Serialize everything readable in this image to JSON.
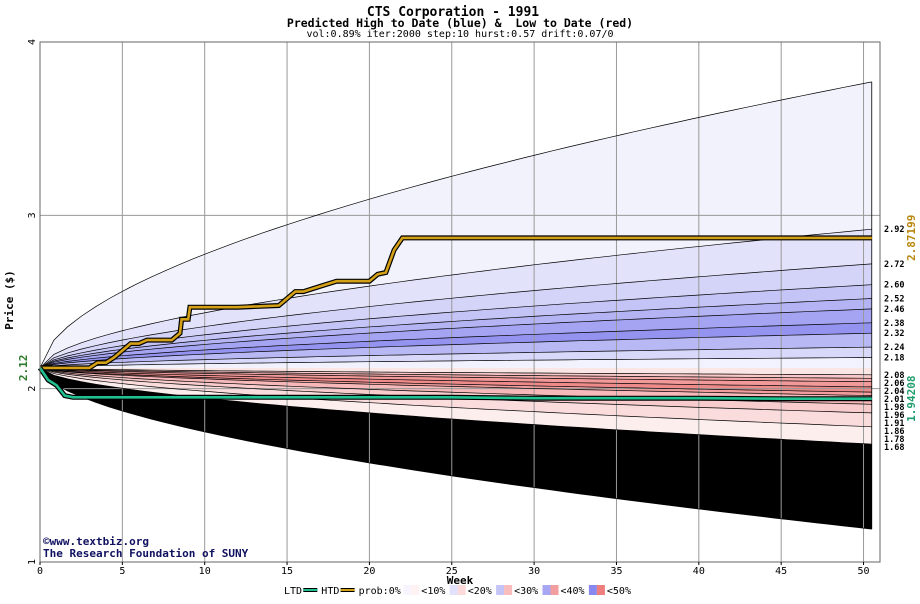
{
  "chart_data": {
    "type": "area",
    "title": "CTS Corporation - 1991",
    "subtitle": "Predicted High to Date (blue) &  Low to Date (red)",
    "params": "vol:0.89% iter:2000 step:10 hurst:0.57 drift:0.07/0",
    "xlabel": "Week",
    "ylabel": "Price ($)",
    "xlim": [
      0,
      51
    ],
    "ylim": [
      1,
      4
    ],
    "x_ticks": [
      0,
      5,
      10,
      15,
      20,
      25,
      30,
      35,
      40,
      45,
      50
    ],
    "y_ticks": [
      1,
      2,
      3,
      4
    ],
    "grid": true,
    "start_price": 2.12,
    "start_price_label": "2.12",
    "htd_value_label": "2.87199",
    "ltd_value_label": "1.94208",
    "high_quantile_end_values": [
      2.92,
      2.72,
      2.6,
      2.52,
      2.46,
      2.38,
      2.32,
      2.24,
      2.18
    ],
    "high_quantile_end_labels": [
      "2.92",
      "2.72",
      "2.60",
      "2.52",
      "2.46",
      "2.38",
      "2.32",
      "2.24",
      "2.18"
    ],
    "low_quantile_end_values": [
      2.08,
      2.06,
      2.04,
      2.01,
      1.98,
      1.96,
      1.91,
      1.86,
      1.78,
      1.68
    ],
    "low_quantile_end_labels": [
      "2.08",
      "2.06",
      "2.04",
      "2.01",
      "1.98",
      "1.96",
      "1.91",
      "1.86",
      "1.78",
      "1.68"
    ],
    "high_max_end": 3.77,
    "low_min_end": 1.19,
    "series": [
      {
        "name": "HTD",
        "color": "#d4a017",
        "x": [
          0,
          1,
          2,
          3,
          3.5,
          4,
          4.5,
          5,
          5.5,
          6,
          6.5,
          7,
          8,
          8.5,
          8.6,
          9,
          9.1,
          10,
          12,
          14.5,
          15,
          15.5,
          16,
          17,
          18,
          20,
          20.5,
          21,
          21.5,
          22,
          25,
          30,
          35,
          40,
          45,
          50.5
        ],
        "y": [
          2.12,
          2.12,
          2.12,
          2.12,
          2.15,
          2.15,
          2.18,
          2.22,
          2.26,
          2.26,
          2.28,
          2.28,
          2.28,
          2.32,
          2.4,
          2.4,
          2.47,
          2.47,
          2.47,
          2.48,
          2.52,
          2.56,
          2.56,
          2.59,
          2.62,
          2.62,
          2.66,
          2.67,
          2.8,
          2.87,
          2.87,
          2.87,
          2.87,
          2.87,
          2.87,
          2.87
        ]
      },
      {
        "name": "LTD",
        "color": "#20c090",
        "x": [
          0,
          0.5,
          1,
          1.5,
          2,
          2.5,
          3,
          5,
          10,
          15,
          20,
          25,
          30,
          35,
          40,
          45,
          50.5
        ],
        "y": [
          2.12,
          2.05,
          2.02,
          1.96,
          1.95,
          1.95,
          1.95,
          1.95,
          1.95,
          1.95,
          1.95,
          1.95,
          1.945,
          1.945,
          1.945,
          1.942,
          1.942
        ]
      }
    ],
    "legend": [
      {
        "label": "LTD",
        "type": "line",
        "color": "#20c090"
      },
      {
        "label": "HTD",
        "type": "line",
        "color": "#d4a017"
      },
      {
        "label": "prob:0%",
        "type": "text"
      },
      {
        "label": "<10%",
        "type": "swatch",
        "colors": [
          "#f8f4ff",
          "#fff2f2"
        ]
      },
      {
        "label": "<20%",
        "type": "swatch",
        "colors": [
          "#e2e2fc",
          "#fcdada"
        ]
      },
      {
        "label": "<30%",
        "type": "swatch",
        "colors": [
          "#c4c4f6",
          "#f8bcbc"
        ]
      },
      {
        "label": "<40%",
        "type": "swatch",
        "colors": [
          "#a6a6f2",
          "#f29e9e"
        ]
      },
      {
        "label": "<50%",
        "type": "swatch",
        "colors": [
          "#8888ee",
          "#ee7e7e"
        ]
      }
    ],
    "credit_lines": [
      "www.textbiz.org",
      "The Research Foundation of SUNY"
    ],
    "copyright_symbol": "©",
    "colors": {
      "htd": "#d4a017",
      "ltd": "#20c090",
      "htd_label": "#b8860b",
      "ltd_label": "#1e9e6e",
      "start_label": "#2a7a2a",
      "credit": "#101060"
    }
  }
}
